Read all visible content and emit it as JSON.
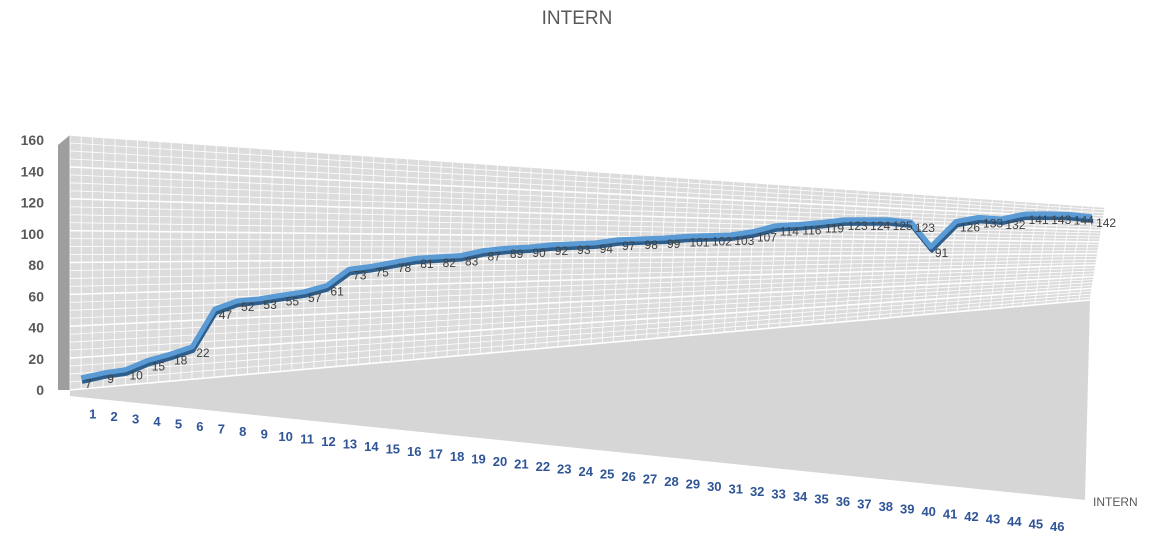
{
  "chart_data": {
    "type": "line",
    "title": "INTERN",
    "categories": [
      "1",
      "2",
      "3",
      "4",
      "5",
      "6",
      "7",
      "8",
      "9",
      "10",
      "11",
      "12",
      "13",
      "14",
      "15",
      "16",
      "17",
      "18",
      "19",
      "20",
      "21",
      "22",
      "23",
      "24",
      "25",
      "26",
      "27",
      "28",
      "29",
      "30",
      "31",
      "32",
      "33",
      "34",
      "35",
      "36",
      "37",
      "38",
      "39",
      "40",
      "41",
      "42",
      "43",
      "44",
      "45",
      "46"
    ],
    "series": [
      {
        "name": "INTERN",
        "values": [
          7,
          9,
          10,
          15,
          18,
          22,
          47,
          52,
          53,
          55,
          57,
          61,
          73,
          75,
          78,
          81,
          82,
          83,
          87,
          89,
          90,
          92,
          93,
          94,
          97,
          98,
          99,
          101,
          102,
          103,
          107,
          114,
          116,
          119,
          123,
          124,
          125,
          123,
          91,
          126,
          133,
          132,
          141,
          143,
          144,
          142
        ]
      }
    ],
    "y_ticks": [
      "0",
      "20",
      "40",
      "60",
      "80",
      "100",
      "120",
      "140",
      "160"
    ],
    "ylim": [
      0,
      160
    ],
    "grid": true,
    "data_labels": true,
    "view": "3d",
    "colors": {
      "line": "#5b9bd5",
      "line_dark": "#2e5f8c",
      "grid": "#ffffff",
      "wall": "#dcdcdc",
      "axis_text": "#595959",
      "category_text": "#2f5597",
      "label_text": "#404040"
    }
  }
}
